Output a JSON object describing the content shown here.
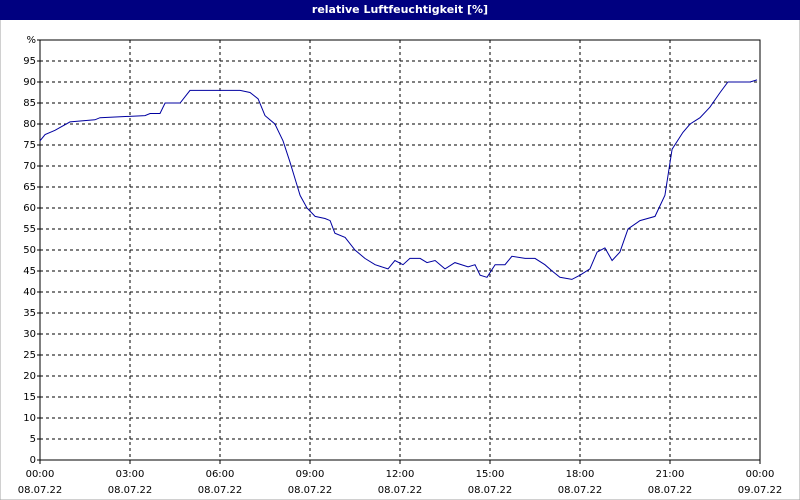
{
  "chart_data": {
    "type": "line",
    "title": "relative Luftfeuchtigkeit [%]",
    "x": [
      0,
      0.17,
      0.5,
      1,
      1.83,
      2,
      3.5,
      3.67,
      4,
      4.17,
      4.67,
      5,
      6.67,
      7,
      7.27,
      7.5,
      7.83,
      8.1,
      8.33,
      8.5,
      8.67,
      8.9,
      9.17,
      9.5,
      9.67,
      9.83,
      10.17,
      10.5,
      10.83,
      11.17,
      11.6,
      11.83,
      12.1,
      12.33,
      12.67,
      12.9,
      13.17,
      13.5,
      13.83,
      14.27,
      14.5,
      14.67,
      14.9,
      15.17,
      15.5,
      15.73,
      16.17,
      16.5,
      16.83,
      17.07,
      17.33,
      17.73,
      18,
      18.33,
      18.57,
      18.83,
      19.07,
      19.33,
      19.6,
      20,
      20.5,
      20.83,
      21.07,
      21.43,
      21.67,
      22,
      22.33,
      22.67,
      22.93,
      23.67,
      23.9
    ],
    "series": [
      {
        "name": "relative Luftfeuchtigkeit",
        "color": "#0000a0",
        "values": [
          76,
          77.5,
          78.5,
          80.5,
          81,
          81.5,
          82,
          82.5,
          82.5,
          85,
          85,
          88,
          88,
          87.5,
          86,
          82,
          80,
          76,
          71,
          67,
          63,
          60,
          58,
          57.5,
          57,
          54,
          53,
          50,
          48,
          46.5,
          45.5,
          47.5,
          46.5,
          48,
          48,
          47,
          47.5,
          45.5,
          47,
          46,
          46.5,
          44,
          43.5,
          46.5,
          46.5,
          48.5,
          48,
          48,
          46.5,
          45,
          43.5,
          43,
          44,
          45.5,
          49.5,
          50.5,
          47.5,
          49.5,
          55,
          57,
          58,
          63,
          74,
          78,
          80,
          81.5,
          84,
          87.5,
          90,
          90,
          90.5
        ]
      }
    ],
    "xlim": [
      0,
      24
    ],
    "xticks": [
      {
        "value": 0,
        "label": [
          "00:00",
          "08.07.22"
        ]
      },
      {
        "value": 3,
        "label": [
          "03:00",
          "08.07.22"
        ]
      },
      {
        "value": 6,
        "label": [
          "06:00",
          "08.07.22"
        ]
      },
      {
        "value": 9,
        "label": [
          "09:00",
          "08.07.22"
        ]
      },
      {
        "value": 12,
        "label": [
          "12:00",
          "08.07.22"
        ]
      },
      {
        "value": 15,
        "label": [
          "15:00",
          "08.07.22"
        ]
      },
      {
        "value": 18,
        "label": [
          "18:00",
          "08.07.22"
        ]
      },
      {
        "value": 21,
        "label": [
          "21:00",
          "08.07.22"
        ]
      },
      {
        "value": 24,
        "label": [
          "00:00",
          "09.07.22"
        ]
      }
    ],
    "ylim": [
      0,
      100
    ],
    "yticks": [
      0,
      5,
      10,
      15,
      20,
      25,
      30,
      35,
      40,
      45,
      50,
      55,
      60,
      65,
      70,
      75,
      80,
      85,
      90,
      95,
      {
        "value": 100,
        "label": "%"
      }
    ],
    "grid": true
  }
}
